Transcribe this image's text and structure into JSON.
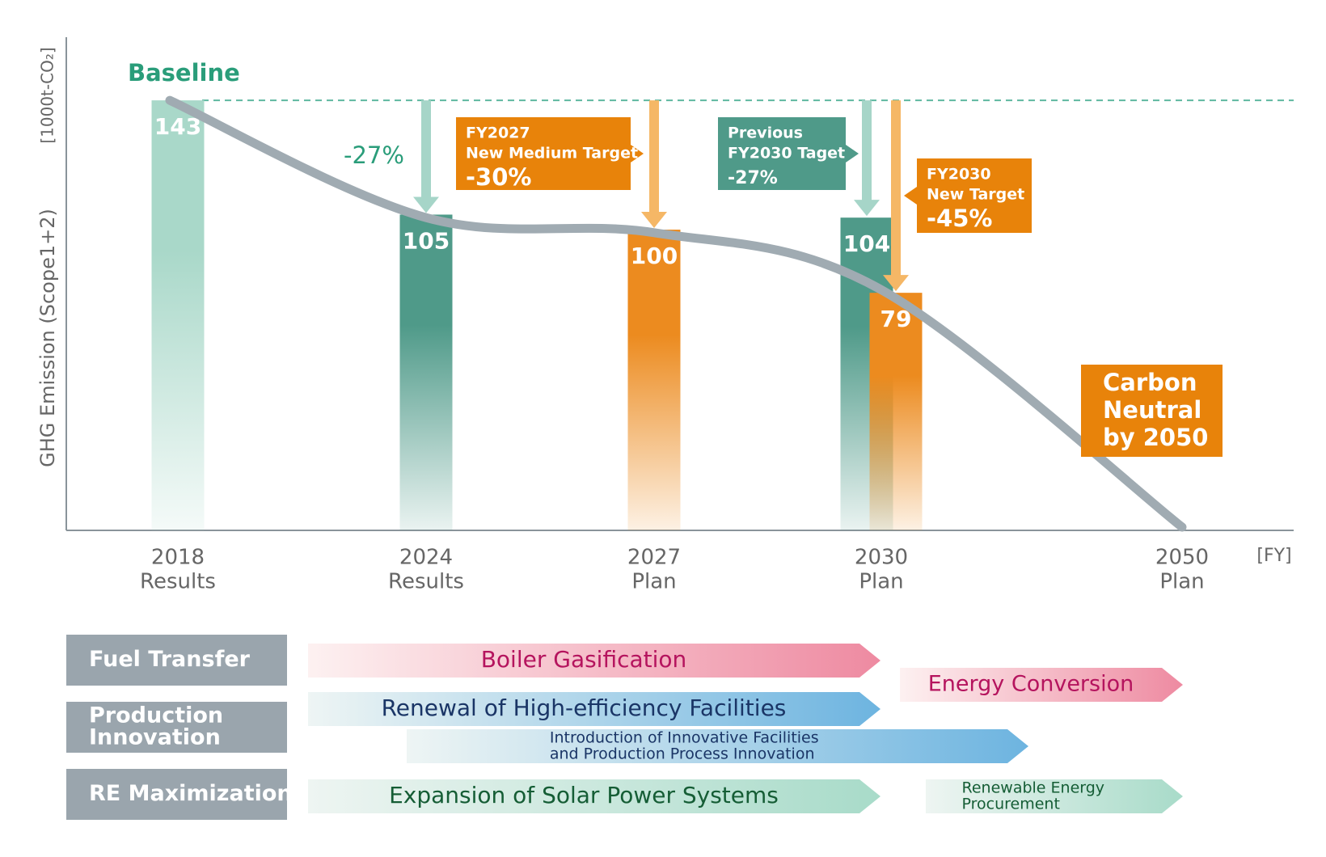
{
  "chart_data": {
    "type": "bar",
    "y_label": "GHG Emission (Scope1+2)",
    "y_unit": "[1000t-CO₂]",
    "x_unit": "[FY]",
    "categories": [
      "2018",
      "2024",
      "2027",
      "2030",
      "2050"
    ],
    "category_notes": [
      "Results",
      "Results",
      "Plan",
      "Plan",
      "Plan"
    ],
    "series": [
      {
        "colors": [
          "#a9d8c9",
          "#4f9a89",
          "#ec8b1f",
          "#4f9a89",
          null
        ],
        "values": [
          143,
          105,
          100,
          104,
          null
        ]
      },
      {
        "color": "#ec8b1f",
        "values": [
          null,
          null,
          null,
          79,
          null
        ]
      }
    ],
    "trend": {
      "type": "line",
      "color": "#a0abb2",
      "values": [
        143,
        104,
        99,
        80,
        0
      ]
    },
    "ylim": [
      0,
      164
    ],
    "annotations": {
      "baseline": "Baseline",
      "reduction_2024": "-27%",
      "target_2027": [
        "FY2027",
        "New Medium Target",
        "-30%"
      ],
      "previous_2030": [
        "Previous",
        "FY2030 Taget",
        "-27%"
      ],
      "target_2030": [
        "FY2030",
        "New Target",
        "-45%"
      ],
      "carbon_neutral": [
        "Carbon",
        "Neutral",
        "by 2050"
      ]
    }
  },
  "roadmap": {
    "rows": [
      {
        "label": [
          "Fuel Transfer"
        ],
        "arrows": [
          {
            "text": [
              "Boiler Gasification"
            ]
          },
          {
            "text": [
              "Energy Conversion"
            ]
          }
        ]
      },
      {
        "label": [
          "Production",
          "Innovation"
        ],
        "arrows": [
          {
            "text": [
              "Renewal of High-efficiency Facilities"
            ]
          },
          {
            "text": [
              "Introduction of Innovative Facilities",
              "and Production Process Innovation"
            ]
          }
        ]
      },
      {
        "label": [
          "RE Maximization"
        ],
        "arrows": [
          {
            "text": [
              "Expansion of Solar Power Systems"
            ]
          },
          {
            "text": [
              "Renewable Energy",
              "Procurement"
            ]
          }
        ]
      }
    ]
  }
}
